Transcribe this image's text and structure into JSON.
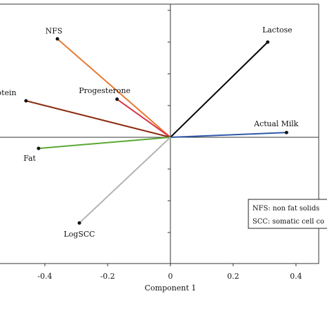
{
  "chart_data": {
    "type": "scatter",
    "title": "",
    "xlabel": "Component 1",
    "ylabel": "",
    "xlim": [
      -0.5,
      0.45
    ],
    "ylim": [
      -0.45,
      0.45
    ],
    "grid": false,
    "xticks": [
      "-0.4",
      "-0.2",
      "0",
      "0.2",
      "0.4"
    ],
    "xtick_values": [
      -0.4,
      -0.2,
      0,
      0.2,
      0.4
    ],
    "ytick_values": [
      -0.3,
      -0.2,
      -0.1,
      0.1,
      0.2,
      0.3,
      0.4
    ],
    "origin": [
      0,
      0
    ],
    "series": [
      {
        "name": "Lactose",
        "x": 0.31,
        "y": 0.3,
        "color": "#000000"
      },
      {
        "name": "Actual Milk",
        "x": 0.37,
        "y": 0.015,
        "color": "#2e57a8"
      },
      {
        "name": "NFS",
        "x": -0.36,
        "y": 0.31,
        "color": "#e8782e"
      },
      {
        "name": "Progesterone",
        "x": -0.17,
        "y": 0.12,
        "color": "#d9344a"
      },
      {
        "name": "Protein",
        "x": -0.46,
        "y": 0.115,
        "color": "#8b2a0e"
      },
      {
        "name": "Fat",
        "x": -0.42,
        "y": -0.035,
        "color": "#5aa830"
      },
      {
        "name": "LogSCC",
        "x": -0.29,
        "y": -0.27,
        "color": "#b3b3b3"
      }
    ],
    "legend_box": {
      "position": "bottom-right",
      "lines": [
        "NFS: non fat solids",
        "SCC: somatic cell co"
      ]
    }
  }
}
